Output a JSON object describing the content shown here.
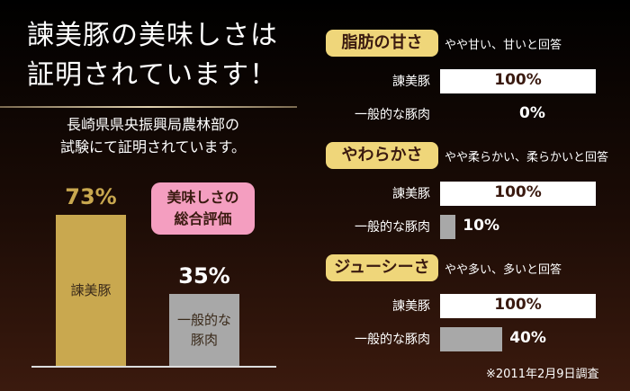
{
  "chart_data": [
    {
      "type": "bar",
      "title": "諫美豚の美味しさは\n証明されています！",
      "subtitle": "長崎県県央振興局農林部の\n試験にて証明されています。",
      "annotation": "美味しさの\n総合評価",
      "categories": [
        "諫美豚",
        "一般的な\n豚肉"
      ],
      "values": [
        73,
        35
      ],
      "value_labels": [
        "73%",
        "35%"
      ],
      "colors": [
        "#c9a84f",
        "#a8a8a8"
      ],
      "ylim": [
        0,
        100
      ]
    },
    {
      "type": "hbar",
      "title": "脂肪の甘さ",
      "subtitle": "やや甘い、甘いと回答",
      "categories": [
        "諫美豚",
        "一般的な豚肉"
      ],
      "values": [
        100,
        0
      ],
      "value_labels": [
        "100%",
        "0%"
      ],
      "colors": [
        "#ffffff",
        "#a8a8a8"
      ],
      "xlim": [
        0,
        100
      ]
    },
    {
      "type": "hbar",
      "title": "やわらかさ",
      "subtitle": "やや柔らかい、柔らかいと回答",
      "categories": [
        "諫美豚",
        "一般的な豚肉"
      ],
      "values": [
        100,
        10
      ],
      "value_labels": [
        "100%",
        "10%"
      ],
      "colors": [
        "#ffffff",
        "#a8a8a8"
      ],
      "xlim": [
        0,
        100
      ]
    },
    {
      "type": "hbar",
      "title": "ジューシーさ",
      "subtitle": "やや多い、多いと回答",
      "categories": [
        "諫美豚",
        "一般的な豚肉"
      ],
      "values": [
        100,
        40
      ],
      "value_labels": [
        "100%",
        "40%"
      ],
      "colors": [
        "#ffffff",
        "#a8a8a8"
      ],
      "xlim": [
        0,
        100
      ]
    }
  ],
  "note": "※2011年2月9日調査"
}
